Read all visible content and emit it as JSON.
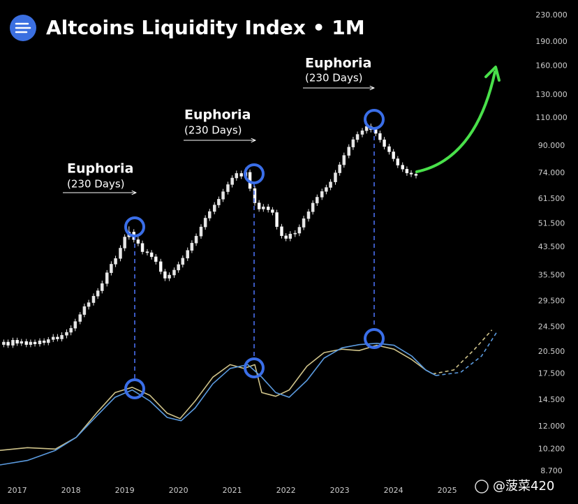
{
  "chart_data": {
    "type": "candlestick",
    "title": "Altcoins Liquidity Index • 1M",
    "watermark": "@菠菜420",
    "candle_color": "#e6e6e6",
    "ylog": true,
    "xlim": [
      2016.68,
      2026.55
    ],
    "xticks": [
      2017,
      2018,
      2019,
      2020,
      2021,
      2022,
      2023,
      2024,
      2025
    ],
    "ylim": [
      8.7,
      230
    ],
    "yticks": [
      {
        "value": 230,
        "label": "230.000"
      },
      {
        "value": 190,
        "label": "190.000"
      },
      {
        "value": 160,
        "label": "160.000"
      },
      {
        "value": 130,
        "label": "130.000"
      },
      {
        "value": 110,
        "label": "110.000"
      },
      {
        "value": 90,
        "label": "90.000"
      },
      {
        "value": 74,
        "label": "74.000"
      },
      {
        "value": 61.5,
        "label": "61.500"
      },
      {
        "value": 51.5,
        "label": "51.500"
      },
      {
        "value": 43.5,
        "label": "43.500"
      },
      {
        "value": 35.5,
        "label": "35.500"
      },
      {
        "value": 29.5,
        "label": "29.500"
      },
      {
        "value": 24.5,
        "label": "24.500"
      },
      {
        "value": 20.5,
        "label": "20.500"
      },
      {
        "value": 17.5,
        "label": "17.500"
      },
      {
        "value": 14.5,
        "label": "14.500"
      },
      {
        "value": 12,
        "label": "12.000"
      },
      {
        "value": 10.2,
        "label": "10.200"
      },
      {
        "value": 8.7,
        "label": "8.700"
      }
    ],
    "x": [
      2016.75,
      2016.83,
      2016.92,
      2017.0,
      2017.08,
      2017.17,
      2017.25,
      2017.33,
      2017.42,
      2017.5,
      2017.58,
      2017.67,
      2017.75,
      2017.83,
      2017.92,
      2018.0,
      2018.08,
      2018.17,
      2018.25,
      2018.33,
      2018.42,
      2018.5,
      2018.58,
      2018.67,
      2018.75,
      2018.83,
      2018.92,
      2019.0,
      2019.08,
      2019.17,
      2019.25,
      2019.33,
      2019.42,
      2019.5,
      2019.58,
      2019.67,
      2019.75,
      2019.83,
      2019.92,
      2020.0,
      2020.08,
      2020.17,
      2020.25,
      2020.33,
      2020.42,
      2020.5,
      2020.58,
      2020.67,
      2020.75,
      2020.83,
      2020.92,
      2021.0,
      2021.08,
      2021.17,
      2021.25,
      2021.33,
      2021.42,
      2021.5,
      2021.58,
      2021.67,
      2021.75,
      2021.83,
      2021.92,
      2022.0,
      2022.08,
      2022.17,
      2022.25,
      2022.33,
      2022.42,
      2022.5,
      2022.58,
      2022.67,
      2022.75,
      2022.83,
      2022.92,
      2023.0,
      2023.08,
      2023.17,
      2023.25,
      2023.33,
      2023.42,
      2023.5,
      2023.58,
      2023.67,
      2023.75,
      2023.83,
      2023.92,
      2024.0,
      2024.08,
      2024.17,
      2024.25,
      2024.33,
      2024.42
    ],
    "open": [
      21.6,
      22.0,
      21.5,
      22.3,
      21.8,
      22.1,
      21.6,
      22.0,
      21.7,
      22.2,
      21.9,
      22.4,
      22.8,
      22.5,
      23.1,
      23.6,
      24.3,
      25.5,
      26.8,
      28.4,
      29.2,
      30.6,
      31.8,
      33.5,
      36.2,
      38.5,
      40.1,
      43.2,
      46.8,
      48.5,
      45.9,
      44.7,
      42.1,
      41.8,
      40.6,
      39.2,
      36.5,
      34.8,
      35.6,
      36.9,
      38.4,
      40.2,
      42.5,
      44.8,
      47.1,
      50.3,
      53.6,
      56.2,
      58.9,
      61.4,
      64.8,
      68.2,
      71.5,
      73.9,
      72.4,
      74.5,
      66.3,
      59.8,
      57.2,
      58.1,
      56.9,
      55.8,
      50.4,
      47.2,
      46.3,
      47.8,
      48.1,
      50.2,
      53.4,
      56.1,
      59.7,
      62.3,
      64.9,
      66.8,
      69.5,
      74.2,
      78.6,
      84.1,
      89.3,
      94.2,
      97.8,
      100.4,
      103.6,
      101.2,
      98.5,
      94.1,
      89.6,
      86.3,
      82.1,
      78.4,
      76.2,
      74.1,
      73.5
    ],
    "high": [
      22.4,
      22.4,
      22.7,
      22.7,
      22.5,
      22.5,
      22.4,
      22.4,
      22.6,
      22.6,
      22.8,
      23.3,
      23.3,
      23.6,
      24.1,
      24.8,
      26.0,
      27.3,
      29.0,
      29.8,
      31.2,
      32.4,
      34.2,
      36.9,
      39.3,
      40.9,
      44.1,
      47.7,
      50.5,
      49.5,
      46.8,
      45.6,
      42.9,
      42.6,
      41.4,
      40.0,
      37.2,
      36.3,
      37.6,
      39.2,
      41.0,
      43.4,
      45.7,
      48.0,
      51.3,
      54.7,
      57.3,
      60.1,
      62.6,
      66.1,
      69.6,
      72.9,
      75.4,
      75.4,
      77.0,
      76.0,
      67.6,
      61.0,
      59.3,
      59.3,
      58.0,
      56.9,
      51.4,
      48.1,
      48.8,
      49.1,
      51.2,
      54.5,
      57.2,
      60.9,
      63.5,
      66.2,
      68.1,
      70.9,
      75.7,
      80.2,
      85.8,
      91.1,
      96.1,
      99.8,
      102.4,
      107.5,
      105.7,
      103.2,
      100.5,
      96.0,
      91.4,
      88.0,
      83.7,
      80.0,
      77.7,
      75.6,
      75.0
    ],
    "low": [
      21.2,
      21.1,
      21.1,
      21.4,
      21.4,
      21.2,
      21.2,
      21.3,
      21.3,
      21.5,
      21.5,
      22.0,
      22.1,
      22.1,
      22.6,
      23.1,
      23.8,
      25.0,
      26.3,
      27.8,
      28.6,
      30.0,
      31.2,
      32.8,
      35.5,
      37.7,
      39.3,
      42.3,
      45.9,
      45.0,
      43.8,
      41.3,
      41.0,
      39.8,
      38.4,
      35.8,
      34.1,
      34.1,
      34.9,
      36.2,
      37.6,
      39.4,
      41.7,
      43.9,
      46.2,
      49.3,
      52.5,
      55.1,
      57.7,
      60.2,
      63.5,
      66.8,
      70.1,
      71.0,
      71.0,
      65.0,
      58.6,
      56.1,
      56.1,
      55.8,
      54.7,
      49.4,
      46.3,
      45.4,
      45.4,
      46.8,
      47.1,
      49.2,
      52.3,
      55.0,
      58.5,
      61.1,
      63.6,
      65.5,
      68.1,
      72.7,
      77.0,
      82.4,
      87.5,
      92.3,
      95.8,
      98.4,
      99.2,
      96.5,
      92.2,
      87.8,
      84.6,
      80.5,
      76.8,
      74.7,
      72.6,
      72.0,
      71.3
    ],
    "close": [
      22.0,
      21.5,
      22.3,
      21.8,
      22.1,
      21.6,
      22.0,
      21.7,
      22.2,
      21.9,
      22.4,
      22.8,
      22.5,
      23.1,
      23.6,
      24.3,
      25.5,
      26.8,
      28.4,
      29.2,
      30.6,
      31.8,
      33.5,
      36.2,
      38.5,
      40.1,
      43.2,
      46.8,
      48.5,
      45.9,
      44.7,
      42.1,
      41.8,
      40.6,
      39.2,
      36.5,
      34.8,
      35.6,
      36.9,
      38.4,
      40.2,
      42.5,
      44.8,
      47.1,
      50.3,
      53.6,
      56.2,
      58.9,
      61.4,
      64.8,
      68.2,
      71.5,
      73.9,
      72.4,
      74.5,
      66.3,
      59.8,
      57.2,
      58.1,
      56.9,
      55.8,
      50.4,
      47.2,
      46.3,
      47.8,
      48.1,
      50.2,
      53.4,
      56.1,
      59.7,
      62.3,
      64.9,
      66.8,
      69.5,
      74.2,
      78.6,
      84.1,
      89.3,
      94.2,
      97.8,
      100.4,
      103.6,
      101.2,
      98.5,
      94.1,
      89.6,
      86.3,
      82.1,
      78.4,
      76.2,
      74.1,
      73.5,
      72.8
    ],
    "series": [
      {
        "type": "line",
        "color": "#cfc38a",
        "dashed": false,
        "x": [
          2016.68,
          2017.19,
          2017.71,
          2018.1,
          2018.49,
          2018.82,
          2019.14,
          2019.47,
          2019.79,
          2020.03,
          2020.31,
          2020.64,
          2020.96,
          2021.22,
          2021.42,
          2021.55,
          2021.81,
          2022.06,
          2022.39,
          2022.71,
          2023.04,
          2023.36,
          2023.69,
          2024.01,
          2024.34,
          2024.6,
          2024.73
        ],
        "values": [
          10.1,
          10.3,
          10.2,
          11.1,
          13.3,
          15.3,
          15.9,
          15.0,
          13.2,
          12.7,
          14.4,
          17.1,
          18.7,
          18.2,
          18.7,
          15.3,
          14.9,
          15.6,
          18.5,
          20.4,
          20.9,
          20.7,
          21.5,
          20.9,
          19.4,
          18.0,
          17.5
        ]
      },
      {
        "type": "line",
        "color": "#cfc38a",
        "dashed": true,
        "x": [
          2024.73,
          2025.12,
          2025.51,
          2025.83
        ],
        "values": [
          17.5,
          18.0,
          20.9,
          24.0
        ]
      },
      {
        "type": "line",
        "color": "#5b9be0",
        "dashed": false,
        "x": [
          2016.68,
          2017.19,
          2017.71,
          2018.1,
          2018.49,
          2018.82,
          2019.14,
          2019.47,
          2019.79,
          2020.05,
          2020.31,
          2020.64,
          2020.96,
          2021.29,
          2021.55,
          2021.81,
          2022.06,
          2022.39,
          2022.71,
          2023.04,
          2023.36,
          2023.69,
          2024.01,
          2024.34,
          2024.6,
          2024.79
        ],
        "values": [
          9.1,
          9.4,
          10.1,
          11.1,
          13.0,
          14.8,
          15.6,
          14.4,
          12.8,
          12.5,
          13.7,
          16.3,
          18.2,
          18.7,
          17.1,
          15.3,
          14.8,
          16.7,
          19.6,
          21.1,
          21.6,
          21.8,
          21.5,
          19.9,
          18.0,
          17.3
        ]
      },
      {
        "type": "line",
        "color": "#5b9be0",
        "dashed": true,
        "x": [
          2024.79,
          2025.25,
          2025.64,
          2025.92
        ],
        "values": [
          17.3,
          17.7,
          19.9,
          23.6
        ]
      }
    ],
    "annotations": [
      {
        "title": "Euphoria",
        "text": "(230 Days)"
      },
      {
        "title": "Euphoria",
        "text": "(230 Days)"
      },
      {
        "title": "Euphoria",
        "text": "(230 Days)"
      }
    ]
  }
}
